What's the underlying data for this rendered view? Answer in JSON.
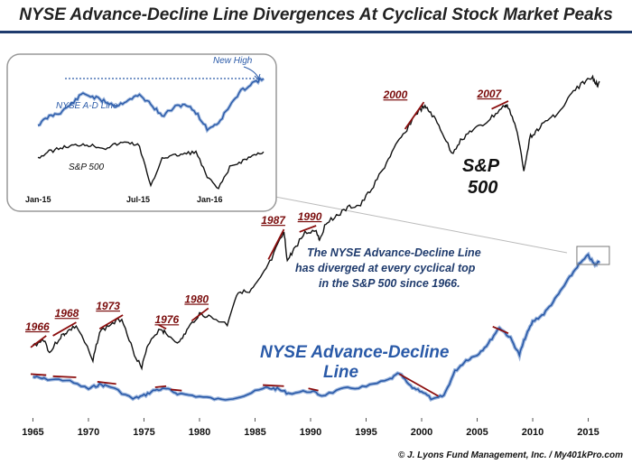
{
  "title": "NYSE Advance-Decline Line Divergences At Cyclical Stock Market Peaks",
  "credit": "© J. Lyons Fund Management, Inc. / My401kPro.com",
  "annotation": [
    "The NYSE Advance-Decline  Line",
    "has diverged at every cyclical top",
    "in the S&P 500 since 1966."
  ],
  "colors": {
    "sp": "#111111",
    "ad": "#2a5aa8",
    "divergence": "#8b0d0d",
    "title_rule": "#1f3b6d"
  },
  "chart_data": [
    {
      "type": "line",
      "title": "",
      "x_ticks": [
        "1965",
        "1970",
        "1975",
        "1980",
        "1985",
        "1990",
        "1995",
        "2000",
        "2005",
        "2010",
        "2015"
      ],
      "xlim": [
        1963.5,
        2016.5
      ],
      "log_scale": true,
      "grid": false,
      "series": [
        {
          "name": "S&P 500",
          "x": [
            1965,
            1966,
            1966.5,
            1967.5,
            1968,
            1968.9,
            1970.4,
            1971,
            1972,
            1973,
            1974,
            1974.8,
            1975.5,
            1976.5,
            1977,
            1978.2,
            1979,
            1980,
            1981,
            1982.5,
            1983.5,
            1984.5,
            1985.5,
            1986.5,
            1987.6,
            1987.9,
            1988.5,
            1989.5,
            1990.5,
            1990.8,
            1991.5,
            1992.5,
            1993.5,
            1994.5,
            1995.5,
            1996.5,
            1997.5,
            1998.5,
            1999.5,
            2000.2,
            2000.8,
            2001.7,
            2002.7,
            2003.5,
            2004.5,
            2005.5,
            2006.5,
            2007.5,
            2007.8,
            2008.5,
            2009.2,
            2009.8,
            2010.5,
            2011.5,
            2012.5,
            2013.5,
            2014.5,
            2015.4,
            2015.8,
            2016
          ],
          "y": [
            85,
            92,
            78,
            95,
            100,
            108,
            70,
            100,
            110,
            118,
            80,
            65,
            90,
            105,
            98,
            88,
            105,
            125,
            120,
            110,
            165,
            160,
            190,
            240,
            330,
            235,
            270,
            330,
            340,
            305,
            380,
            410,
            450,
            460,
            560,
            700,
            900,
            1100,
            1380,
            1500,
            1400,
            1150,
            850,
            1000,
            1130,
            1200,
            1350,
            1520,
            1500,
            1150,
            700,
            1050,
            1150,
            1300,
            1420,
            1750,
            2000,
            2130,
            1950,
            2040
          ]
        },
        {
          "name": "NYSE Advance-Decline Line",
          "x": [
            1965,
            1966,
            1968,
            1970,
            1971,
            1972,
            1974,
            1975,
            1976,
            1977,
            1978,
            1980,
            1982,
            1984,
            1986,
            1987,
            1988,
            1990,
            1991,
            1993,
            1995,
            1997,
            1998,
            1999,
            2000,
            2001,
            2002,
            2003,
            2004,
            2005,
            2006,
            2007,
            2008,
            2008.8,
            2009.3,
            2010,
            2011,
            2012,
            2013,
            2014,
            2015,
            2015.6,
            2016
          ],
          "y": [
            15,
            13,
            12,
            4,
            8,
            6,
            -5,
            -2,
            3,
            4,
            0,
            -3,
            -6,
            -2,
            5,
            4,
            0,
            2,
            -2,
            4,
            6,
            12,
            18,
            6,
            2,
            -6,
            -2,
            20,
            30,
            35,
            45,
            60,
            50,
            35,
            50,
            65,
            72,
            85,
            100,
            115,
            125,
            116,
            120
          ]
        }
      ],
      "divergence_markers_sp": [
        "1966",
        "1968",
        "1973",
        "1976",
        "1980",
        "1987",
        "1990",
        "2000",
        "2007"
      ],
      "labels": [
        "S&P 500",
        "NYSE Advance-Decline Line"
      ]
    },
    {
      "type": "line",
      "x_ticks": [
        "Jan-15",
        "Jul-15",
        "Jan-16"
      ],
      "annotation": "New High",
      "series": [
        {
          "name": "NYSE A-D Line",
          "x": [
            0,
            0.05,
            0.1,
            0.15,
            0.2,
            0.25,
            0.3,
            0.35,
            0.4,
            0.45,
            0.5,
            0.55,
            0.6,
            0.65,
            0.7,
            0.75,
            0.8,
            0.85,
            0.9,
            0.95,
            1.0
          ],
          "y": [
            40,
            48,
            52,
            60,
            70,
            66,
            62,
            58,
            64,
            68,
            60,
            48,
            56,
            60,
            52,
            36,
            42,
            58,
            72,
            80,
            84
          ]
        },
        {
          "name": "S&P 500",
          "x": [
            0,
            0.05,
            0.1,
            0.15,
            0.2,
            0.25,
            0.3,
            0.35,
            0.4,
            0.45,
            0.5,
            0.55,
            0.6,
            0.65,
            0.7,
            0.75,
            0.8,
            0.85,
            0.9,
            0.95,
            1.0
          ],
          "y": [
            60,
            66,
            70,
            72,
            74,
            72,
            70,
            74,
            76,
            72,
            30,
            60,
            62,
            64,
            66,
            40,
            28,
            50,
            56,
            62,
            66
          ]
        }
      ]
    }
  ]
}
